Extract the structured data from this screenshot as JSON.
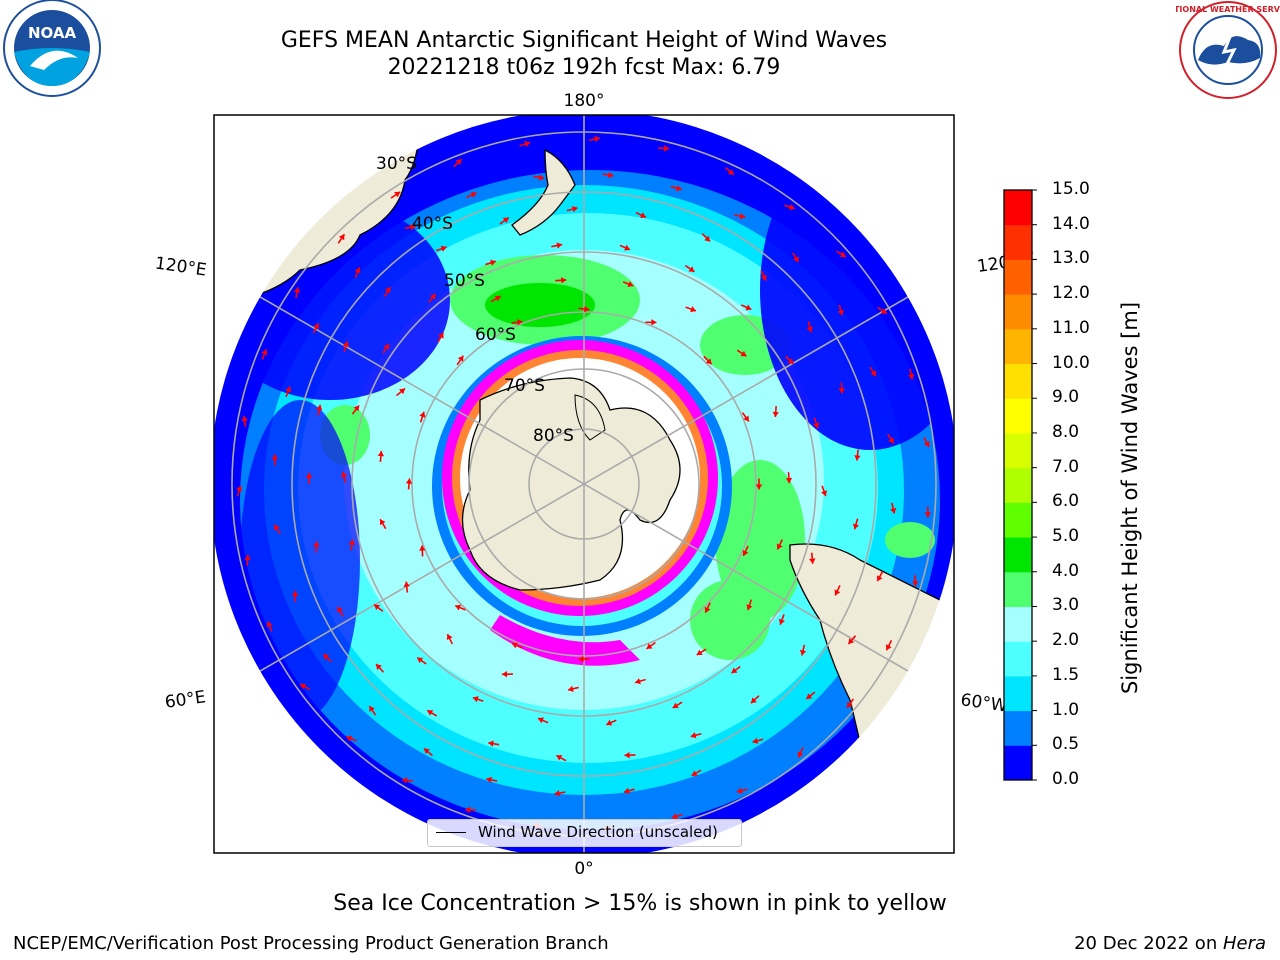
{
  "header": {
    "title_line1": "GEFS MEAN Antarctic Significant Height of Wind Waves",
    "title_line2": "20221218 t06z 192h fcst   Max: 6.79"
  },
  "map": {
    "projection": "south-polar-stereographic",
    "meridian_labels": {
      "top": "180°",
      "bottom": "0°",
      "left_upper": "120°E",
      "left_lower": "60°E",
      "right_upper": "120°W",
      "right_lower": "60°W"
    },
    "latitude_labels": [
      "30°S",
      "40°S",
      "50°S",
      "60°S",
      "70°S",
      "80°S"
    ],
    "ocean_color": "#0000ff",
    "land_color": "#eeecd8",
    "arrow_color": "#ff0000",
    "ice_colors": [
      "#ff00ff",
      "#ffa500",
      "#ffff00"
    ]
  },
  "legend": {
    "label": "Wind Wave Direction (unscaled)"
  },
  "colorbar": {
    "label": "Significant Height of Wind Waves [m]",
    "ticks": [
      "0.0",
      "0.5",
      "1.0",
      "1.5",
      "2.0",
      "3.0",
      "4.0",
      "5.0",
      "6.0",
      "7.0",
      "8.0",
      "9.0",
      "10.0",
      "11.0",
      "12.0",
      "13.0",
      "14.0",
      "15.0"
    ],
    "colors": [
      "#0000ff",
      "#0080ff",
      "#00e5ff",
      "#4dffff",
      "#a6ffff",
      "#50ff70",
      "#00e600",
      "#60ff00",
      "#b0ff00",
      "#d8ff00",
      "#ffff00",
      "#ffe000",
      "#ffb400",
      "#ff8c00",
      "#ff6000",
      "#ff3000",
      "#ff0000"
    ]
  },
  "footer": {
    "ice_note": "Sea Ice Concentration > 15% is shown in pink to yellow",
    "credit_left": "NCEP/EMC/Verification Post Processing Product Generation Branch",
    "credit_date": "20 Dec 2022 on ",
    "credit_host": "Hera"
  },
  "logos": {
    "noaa_text": "NOAA",
    "nws_text": "NATIONAL WEATHER SERVICE"
  }
}
